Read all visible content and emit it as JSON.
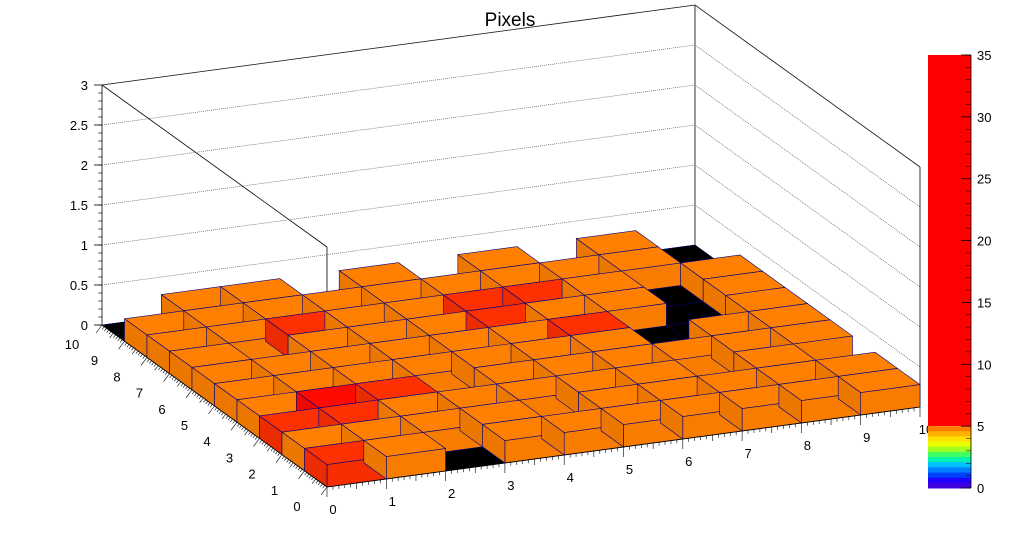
{
  "chart_data": {
    "type": "heatmap",
    "style": "lego3d",
    "title": "Pixels",
    "xlabel": "",
    "ylabel": "",
    "zlabel": "",
    "x_ticks": [
      "0",
      "1",
      "2",
      "3",
      "4",
      "5",
      "6",
      "7",
      "8",
      "9",
      "10"
    ],
    "y_ticks": [
      "0",
      "1",
      "2",
      "3",
      "4",
      "5",
      "6",
      "7",
      "8",
      "9",
      "10"
    ],
    "z_ticks": [
      "0",
      "0.5",
      "1",
      "1.5",
      "2",
      "2.5",
      "3"
    ],
    "zlim": [
      0,
      3
    ],
    "colorbar": {
      "min": 0,
      "max": 35,
      "ticks": [
        "0",
        "5",
        "10",
        "15",
        "20",
        "25",
        "30",
        "35"
      ]
    },
    "grid": true,
    "values": [
      [
        10,
        5,
        0,
        5,
        5,
        5,
        5,
        5,
        5,
        5
      ],
      [
        5,
        5,
        5,
        5,
        0,
        5,
        5,
        5,
        5,
        5
      ],
      [
        10,
        10,
        5,
        5,
        5,
        5,
        5,
        0,
        5,
        0
      ],
      [
        5,
        20,
        10,
        0,
        5,
        5,
        5,
        5,
        5,
        5
      ],
      [
        5,
        5,
        5,
        5,
        5,
        5,
        5,
        0,
        5,
        5
      ],
      [
        5,
        5,
        5,
        5,
        5,
        5,
        10,
        0,
        0,
        5
      ],
      [
        5,
        0,
        5,
        5,
        5,
        10,
        5,
        5,
        0,
        5
      ],
      [
        5,
        5,
        10,
        5,
        5,
        10,
        10,
        5,
        0,
        5
      ],
      [
        5,
        5,
        5,
        5,
        5,
        5,
        5,
        5,
        5,
        0
      ],
      [
        0,
        5,
        5,
        0,
        5,
        0,
        5,
        0,
        5,
        0
      ]
    ]
  },
  "colors": {
    "background": "#ffffff",
    "frame": "#000000",
    "bin_edge": "#000080",
    "empty_bin": "#000000"
  }
}
